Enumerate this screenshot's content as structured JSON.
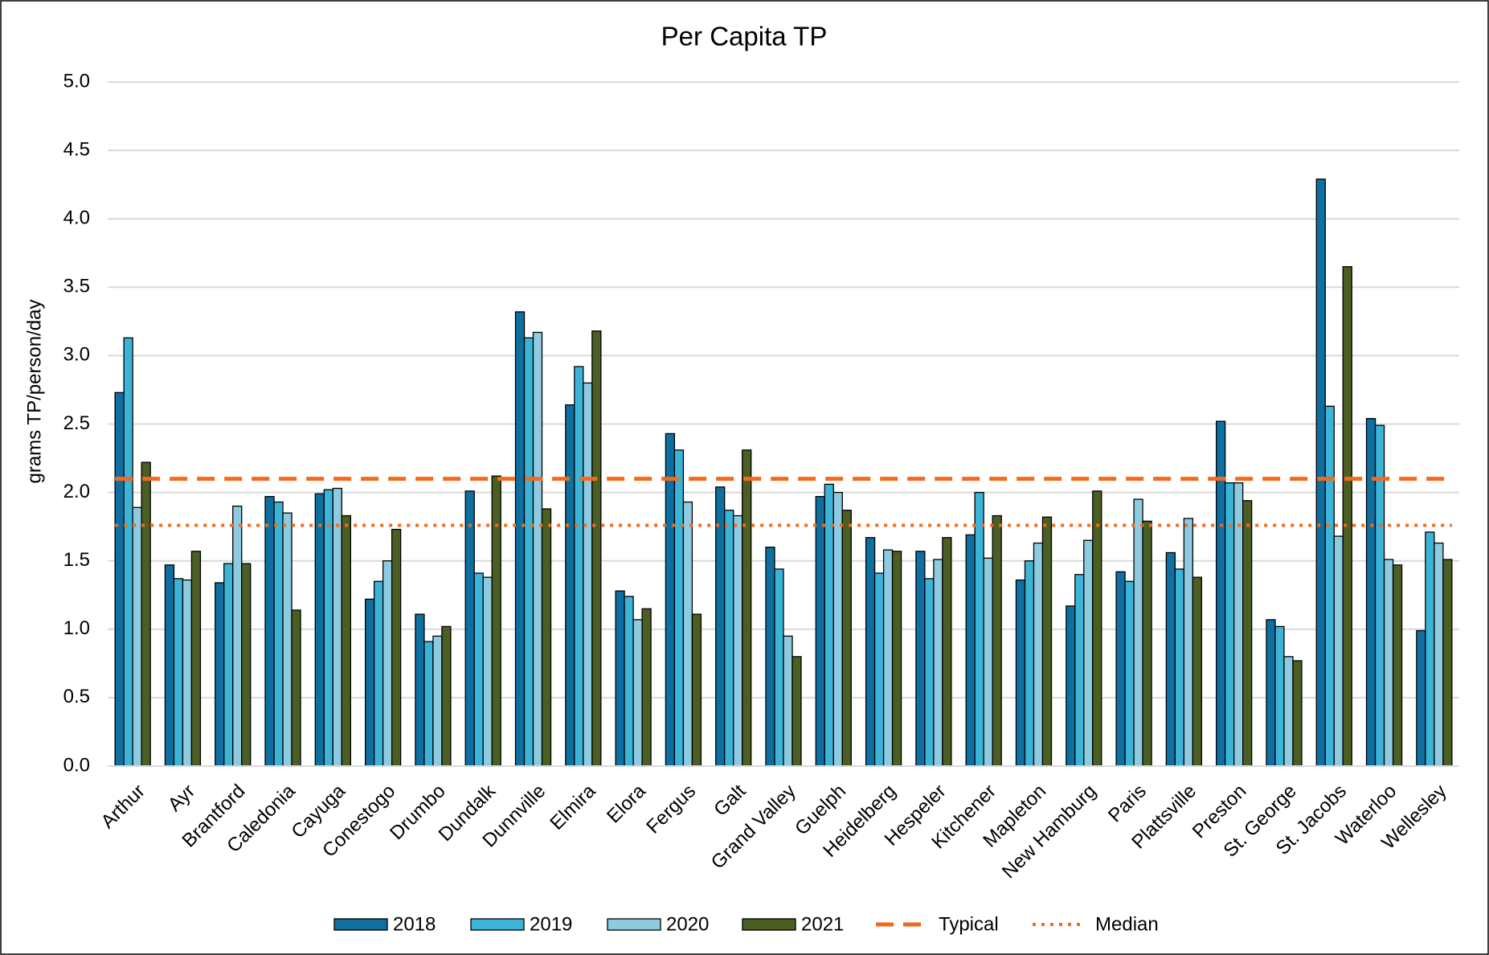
{
  "chart_data": {
    "type": "bar",
    "title": "Per Capita TP",
    "y_label": "grams TP/person/day",
    "categories": [
      "Arthur",
      "Ayr",
      "Brantford",
      "Caledonia",
      "Cayuga",
      "Conestogo",
      "Drumbo",
      "Dundalk",
      "Dunnville",
      "Elmira",
      "Elora",
      "Fergus",
      "Galt",
      "Grand Valley",
      "Guelph",
      "Heidelberg",
      "Hespeler",
      "Kitchener",
      "Mapleton",
      "New Hamburg",
      "Paris",
      "Plattsville",
      "Preston",
      "St. George",
      "St. Jacobs",
      "Waterloo",
      "Wellesley"
    ],
    "series": [
      {
        "name": "2018",
        "color": "#0e6fa0",
        "values": [
          2.73,
          1.47,
          1.34,
          1.97,
          1.99,
          1.22,
          1.11,
          2.01,
          3.32,
          2.64,
          1.28,
          2.43,
          2.04,
          1.6,
          1.97,
          1.67,
          1.57,
          1.69,
          1.36,
          1.17,
          1.42,
          1.56,
          2.52,
          1.07,
          4.29,
          2.54,
          0.99
        ]
      },
      {
        "name": "2019",
        "color": "#3cb4d8",
        "values": [
          3.13,
          1.37,
          1.48,
          1.93,
          2.02,
          1.35,
          0.91,
          1.41,
          3.13,
          2.92,
          1.24,
          2.31,
          1.87,
          1.44,
          2.06,
          1.41,
          1.37,
          2.0,
          1.5,
          1.4,
          1.35,
          1.44,
          2.07,
          1.02,
          2.63,
          2.49,
          1.71
        ]
      },
      {
        "name": "2020",
        "color": "#8fcbe0",
        "values": [
          1.89,
          1.36,
          1.9,
          1.85,
          2.03,
          1.5,
          0.95,
          1.38,
          3.17,
          2.8,
          1.07,
          1.93,
          1.83,
          0.95,
          2.0,
          1.58,
          1.51,
          1.52,
          1.63,
          1.65,
          1.95,
          1.81,
          2.07,
          0.8,
          1.68,
          1.51,
          1.63
        ]
      },
      {
        "name": "2021",
        "color": "#4b5e23",
        "values": [
          2.22,
          1.57,
          1.48,
          1.14,
          1.83,
          1.73,
          1.02,
          2.12,
          1.88,
          3.18,
          1.15,
          1.11,
          2.31,
          0.8,
          1.87,
          1.57,
          1.67,
          1.83,
          1.82,
          2.01,
          1.79,
          1.38,
          1.94,
          0.77,
          3.65,
          1.47,
          1.51
        ]
      }
    ],
    "reference_lines": [
      {
        "name": "Typical",
        "value": 2.1,
        "color": "#f26b1d",
        "style": "dashed"
      },
      {
        "name": "Median",
        "value": 1.76,
        "color": "#f26b1d",
        "style": "dotted"
      }
    ],
    "ylim": [
      0,
      5
    ],
    "yticks": [
      {
        "value": 0,
        "label": "0.0"
      },
      {
        "value": 0.5,
        "label": "0.5"
      },
      {
        "value": 1,
        "label": "1.0"
      },
      {
        "value": 1.5,
        "label": "1.5"
      },
      {
        "value": 2,
        "label": "2.0"
      },
      {
        "value": 2.5,
        "label": "2.5"
      },
      {
        "value": 3,
        "label": "3.0"
      },
      {
        "value": 3.5,
        "label": "3.5"
      },
      {
        "value": 4,
        "label": "4.0"
      },
      {
        "value": 4.5,
        "label": "4.5"
      },
      {
        "value": 5,
        "label": "5.0"
      }
    ],
    "grid": true,
    "legend": "bottom"
  }
}
